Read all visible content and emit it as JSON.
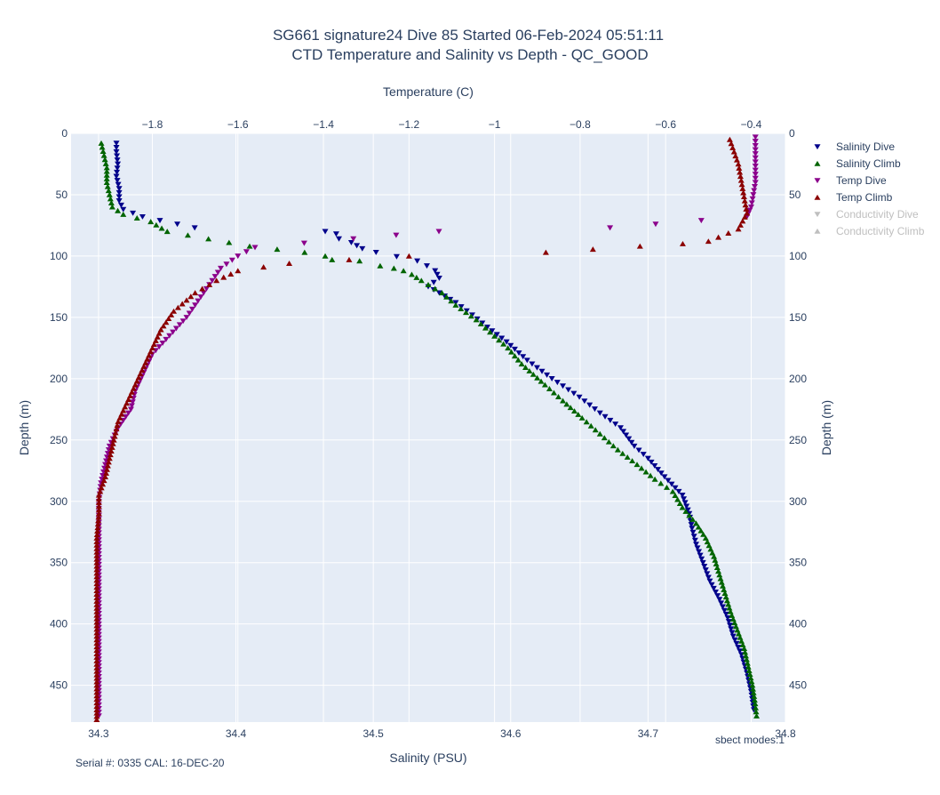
{
  "chart_data": {
    "type": "scatter",
    "title": "SG661 signature24 Dive 85 Started 06-Feb-2024 05:51:11",
    "subtitle": "CTD Temperature and Salinity vs Depth - QC_GOOD",
    "xlabel_bottom": "Salinity (PSU)",
    "xlabel_top": "Temperature (C)",
    "ylabel_left": "Depth (m)",
    "ylabel_right": "Depth (m)",
    "salinity_range": [
      34.28,
      34.8
    ],
    "temperature_range": [
      -1.99,
      -0.32
    ],
    "depth_range": [
      0,
      480
    ],
    "salinity_ticks": [
      "34.3",
      "34.4",
      "34.5",
      "34.6",
      "34.7",
      "34.8"
    ],
    "temperature_ticks": [
      "−1.8",
      "−1.6",
      "−1.4",
      "−1.2",
      "−1",
      "−0.8",
      "−0.6",
      "−0.4"
    ],
    "depth_ticks": [
      "0",
      "50",
      "100",
      "150",
      "200",
      "250",
      "300",
      "350",
      "400",
      "450"
    ],
    "grid": true,
    "legend_position": "top-right",
    "footer_left": "Serial #: 0335  CAL: 16-DEC-20",
    "footer_right": "sbect modes:1",
    "colors": {
      "plot_bg": "#e5ecf6",
      "salinity_dive": "#00008b",
      "salinity_climb": "#006400",
      "temp_dive": "#8b008b",
      "temp_climb": "#8b0000",
      "legend_hidden": "#bfbfbf"
    },
    "series": [
      {
        "name": "Salinity Dive",
        "axis": "salinity",
        "marker": "triangle-down",
        "color": "#00008b",
        "visible": true,
        "points": [
          [
            34.313,
            8
          ],
          [
            34.313,
            15
          ],
          [
            34.314,
            25
          ],
          [
            34.313,
            35
          ],
          [
            34.315,
            45
          ],
          [
            34.315,
            55
          ],
          [
            34.318,
            62
          ],
          [
            34.332,
            68
          ],
          [
            34.37,
            77
          ],
          [
            34.465,
            80
          ],
          [
            34.473,
            82
          ],
          [
            34.475,
            86
          ],
          [
            34.484,
            89
          ],
          [
            34.492,
            94
          ],
          [
            34.502,
            97
          ],
          [
            34.532,
            104
          ],
          [
            34.539,
            108
          ],
          [
            34.545,
            112
          ],
          [
            34.548,
            118
          ],
          [
            34.54,
            125
          ],
          [
            34.548,
            130
          ],
          [
            34.56,
            138
          ],
          [
            34.572,
            148
          ],
          [
            34.583,
            158
          ],
          [
            34.597,
            170
          ],
          [
            34.612,
            185
          ],
          [
            34.63,
            200
          ],
          [
            34.65,
            215
          ],
          [
            34.665,
            228
          ],
          [
            34.68,
            240
          ],
          [
            34.69,
            255
          ],
          [
            34.7,
            265
          ],
          [
            34.712,
            280
          ],
          [
            34.725,
            295
          ],
          [
            34.73,
            310
          ],
          [
            34.732,
            322
          ],
          [
            34.735,
            335
          ],
          [
            34.74,
            350
          ],
          [
            34.745,
            365
          ],
          [
            34.752,
            380
          ],
          [
            34.758,
            395
          ],
          [
            34.762,
            410
          ],
          [
            34.768,
            425
          ],
          [
            34.772,
            440
          ],
          [
            34.775,
            455
          ],
          [
            34.777,
            470
          ]
        ]
      },
      {
        "name": "Salinity Climb",
        "axis": "salinity",
        "marker": "triangle-up",
        "color": "#006400",
        "visible": true,
        "points": [
          [
            34.302,
            8
          ],
          [
            34.304,
            18
          ],
          [
            34.306,
            28
          ],
          [
            34.306,
            40
          ],
          [
            34.308,
            50
          ],
          [
            34.31,
            60
          ],
          [
            34.318,
            66
          ],
          [
            34.338,
            72
          ],
          [
            34.35,
            80
          ],
          [
            34.38,
            86
          ],
          [
            34.41,
            92
          ],
          [
            34.45,
            97
          ],
          [
            34.465,
            100
          ],
          [
            34.47,
            103
          ],
          [
            34.49,
            104
          ],
          [
            34.505,
            108
          ],
          [
            34.515,
            110
          ],
          [
            34.522,
            112
          ],
          [
            34.528,
            115
          ],
          [
            34.535,
            120
          ],
          [
            34.55,
            130
          ],
          [
            34.56,
            140
          ],
          [
            34.575,
            152
          ],
          [
            34.585,
            162
          ],
          [
            34.598,
            175
          ],
          [
            34.608,
            188
          ],
          [
            34.625,
            205
          ],
          [
            34.638,
            218
          ],
          [
            34.652,
            232
          ],
          [
            34.665,
            245
          ],
          [
            34.678,
            258
          ],
          [
            34.692,
            270
          ],
          [
            34.705,
            282
          ],
          [
            34.718,
            292
          ],
          [
            34.725,
            305
          ],
          [
            34.735,
            318
          ],
          [
            34.742,
            330
          ],
          [
            34.748,
            345
          ],
          [
            34.752,
            360
          ],
          [
            34.756,
            375
          ],
          [
            34.76,
            390
          ],
          [
            34.765,
            405
          ],
          [
            34.77,
            420
          ],
          [
            34.773,
            435
          ],
          [
            34.776,
            450
          ],
          [
            34.778,
            465
          ],
          [
            34.779,
            475
          ]
        ]
      },
      {
        "name": "Temp Dive",
        "axis": "temperature",
        "marker": "triangle-down",
        "color": "#8b008b",
        "visible": true,
        "points": [
          [
            -0.39,
            3
          ],
          [
            -0.39,
            10
          ],
          [
            -0.39,
            20
          ],
          [
            -0.39,
            30
          ],
          [
            -0.39,
            40
          ],
          [
            -0.395,
            50
          ],
          [
            -0.4,
            60
          ],
          [
            -0.41,
            68
          ],
          [
            -0.73,
            77
          ],
          [
            -1.13,
            80
          ],
          [
            -1.33,
            86
          ],
          [
            -1.56,
            93
          ],
          [
            -1.6,
            100
          ],
          [
            -1.64,
            110
          ],
          [
            -1.66,
            120
          ],
          [
            -1.68,
            130
          ],
          [
            -1.7,
            140
          ],
          [
            -1.72,
            150
          ],
          [
            -1.76,
            165
          ],
          [
            -1.8,
            180
          ],
          [
            -1.82,
            195
          ],
          [
            -1.84,
            210
          ],
          [
            -1.85,
            225
          ],
          [
            -1.88,
            240
          ],
          [
            -1.9,
            255
          ],
          [
            -1.91,
            270
          ],
          [
            -1.92,
            285
          ],
          [
            -1.925,
            300
          ],
          [
            -1.925,
            320
          ],
          [
            -1.925,
            340
          ],
          [
            -1.925,
            360
          ],
          [
            -1.925,
            380
          ],
          [
            -1.925,
            400
          ],
          [
            -1.925,
            420
          ],
          [
            -1.925,
            440
          ],
          [
            -1.925,
            460
          ],
          [
            -1.925,
            475
          ]
        ]
      },
      {
        "name": "Temp Climb",
        "axis": "temperature",
        "marker": "triangle-up",
        "color": "#8b0000",
        "visible": true,
        "points": [
          [
            -0.45,
            5
          ],
          [
            -0.44,
            15
          ],
          [
            -0.43,
            25
          ],
          [
            -0.425,
            35
          ],
          [
            -0.42,
            45
          ],
          [
            -0.415,
            55
          ],
          [
            -0.41,
            65
          ],
          [
            -0.43,
            78
          ],
          [
            -0.5,
            88
          ],
          [
            -0.56,
            90
          ],
          [
            -0.66,
            92
          ],
          [
            -0.88,
            97
          ],
          [
            -1.2,
            100
          ],
          [
            -1.48,
            106
          ],
          [
            -1.6,
            112
          ],
          [
            -1.65,
            120
          ],
          [
            -1.7,
            130
          ],
          [
            -1.75,
            145
          ],
          [
            -1.78,
            160
          ],
          [
            -1.8,
            175
          ],
          [
            -1.82,
            190
          ],
          [
            -1.84,
            205
          ],
          [
            -1.86,
            220
          ],
          [
            -1.88,
            235
          ],
          [
            -1.89,
            250
          ],
          [
            -1.9,
            265
          ],
          [
            -1.91,
            280
          ],
          [
            -1.925,
            295
          ],
          [
            -1.925,
            310
          ],
          [
            -1.93,
            330
          ],
          [
            -1.93,
            350
          ],
          [
            -1.93,
            370
          ],
          [
            -1.93,
            390
          ],
          [
            -1.93,
            410
          ],
          [
            -1.93,
            430
          ],
          [
            -1.93,
            450
          ],
          [
            -1.93,
            470
          ],
          [
            -1.93,
            478
          ]
        ]
      },
      {
        "name": "Conductivity Dive",
        "axis": "none",
        "marker": "triangle-down",
        "color": "#bfbfbf",
        "visible": false,
        "points": []
      },
      {
        "name": "Conductivity Climb",
        "axis": "none",
        "marker": "triangle-up",
        "color": "#bfbfbf",
        "visible": false,
        "points": []
      }
    ]
  }
}
